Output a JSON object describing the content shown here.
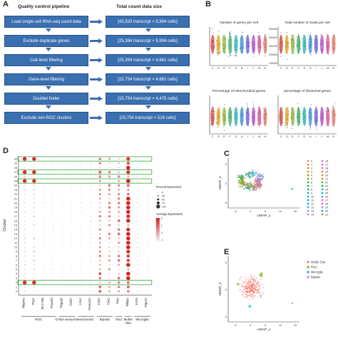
{
  "panels": {
    "a": "A",
    "b": "B",
    "c": "C",
    "d": "D",
    "e": "E"
  },
  "pipeline": {
    "header_left": "Quality control pipeline",
    "header_right": "Total count data size",
    "steps": [
      {
        "label": "Load single-cell RNA-seq count data",
        "count": "[43,320 transcript × 5,994 cells]"
      },
      {
        "label": "Exclude duplicate genes",
        "count": "[25,394 transcript × 5,994 cells]"
      },
      {
        "label": "Cell-level filtering",
        "count": "[25,394 transcript × 4,661 cells]"
      },
      {
        "label": "Gene-level filtering",
        "count": "[15,754 transcript × 4,661 cells]"
      },
      {
        "label": "Doublet finder",
        "count": "[15,754 transcript × 4,475 cells]"
      },
      {
        "label": "Exclude non-RGC clusters",
        "count": "[15,754 transcript × 516 cells]"
      }
    ]
  },
  "violin": {
    "titles": [
      "Number of genes per cell",
      "Total number of reads per cell",
      "Percentage of mitochondrial genes",
      "percentage of ribosomal genes"
    ],
    "groups": [
      "C",
      "D",
      "E",
      "F",
      "G",
      "H",
      "I",
      "L",
      "M",
      "N"
    ],
    "yticks_reads": [
      "500000",
      "400000",
      "300000",
      "200000",
      "100000"
    ],
    "colors": [
      "#d94040",
      "#e3a21a",
      "#8bb83a",
      "#3fae66",
      "#2fb5b0",
      "#3a8fd9",
      "#6a62d6",
      "#b04fcf",
      "#d94fa2",
      "#e07a5f"
    ]
  },
  "dotplot": {
    "ylabel": "Cluster",
    "clusters": [
      "0",
      "1",
      "2",
      "3",
      "4",
      "5",
      "6",
      "7",
      "8",
      "9",
      "10",
      "11",
      "12",
      "13",
      "14",
      "15",
      "16",
      "17",
      "18",
      "19",
      "20",
      "21",
      "22",
      "23",
      "24",
      "25",
      "26",
      "27",
      "28",
      "29",
      "30"
    ],
    "highlight_clusters": [
      "2",
      "25",
      "27",
      "30"
    ],
    "genes": [
      "Rbpms",
      "Thy1",
      "Slc17a6",
      "Pou4f3",
      "Tfap2b",
      "Gad1",
      "Lhx1",
      "Onecut1",
      "Vsx2",
      "Otx2",
      "Rho",
      "Rlbp1",
      "Fcrls",
      "Ptprz2"
    ],
    "groups": [
      {
        "name": "RGC",
        "span": [
          0,
          3
        ]
      },
      {
        "name": "GABA-amacrine",
        "span": [
          4,
          5
        ]
      },
      {
        "name": "Horizontal",
        "span": [
          6,
          7
        ]
      },
      {
        "name": "Bipolar",
        "span": [
          8,
          9
        ]
      },
      {
        "name": "Rod",
        "span": [
          10,
          10
        ]
      },
      {
        "name": "Muller Glia",
        "span": [
          11,
          11
        ]
      },
      {
        "name": "Microglia",
        "span": [
          12,
          13
        ]
      }
    ],
    "legend_pct_title": "Percent Expressed",
    "legend_pct": [
      "0",
      "25",
      "50",
      "75",
      "100"
    ],
    "legend_avg_title": "Average Expression",
    "legend_avg": [
      "2",
      "1",
      "0",
      "-1"
    ],
    "expr_column_level": [
      0.2,
      0.25,
      0.1,
      0.1,
      0.1,
      0.1,
      0.1,
      0.15,
      0.55,
      0.45,
      0.5,
      0.9,
      0.15,
      0.1
    ]
  },
  "umap_c": {
    "xlabel": "UMAP_1",
    "ylabel": "UMAP_2",
    "xticks": [
      "-5",
      "0",
      "5",
      "10",
      "15"
    ],
    "yticks": [
      "5",
      "0",
      "-5"
    ],
    "legend": [
      "0",
      "1",
      "2",
      "3",
      "4",
      "5",
      "6",
      "7",
      "8",
      "9",
      "10",
      "11",
      "12",
      "13",
      "14",
      "15",
      "16",
      "17",
      "18",
      "19",
      "20",
      "21",
      "22",
      "23",
      "24",
      "25",
      "26",
      "27",
      "28",
      "29",
      "30",
      "31"
    ],
    "colors": [
      "#f8766d",
      "#ea8331",
      "#d89000",
      "#c09b00",
      "#a3a500",
      "#7cae00",
      "#39b600",
      "#00bb4e",
      "#00bf7d",
      "#00c1a3",
      "#00bfc4",
      "#00bae0",
      "#00b0f6",
      "#35a2ff",
      "#9590ff",
      "#c77cff",
      "#e76bf3",
      "#fa62db",
      "#ff62bc",
      "#ff6c91",
      "#e58700",
      "#b79f00",
      "#6bb100",
      "#00ba38",
      "#00c08b",
      "#00bcd8",
      "#619cff",
      "#f564e3",
      "#ff64b0",
      "#a58aff",
      "#00b4ef",
      "#d39200"
    ]
  },
  "umap_e": {
    "xlabel": "UMAP_1",
    "ylabel": "UMAP_2",
    "xticks": [
      "-5",
      "0",
      "5",
      "10",
      "15"
    ],
    "yticks": [
      "5",
      "0",
      "-5"
    ],
    "legend": [
      {
        "name": "Muller Glia",
        "color": "#f8766d"
      },
      {
        "name": "RGC",
        "color": "#7cae00"
      },
      {
        "name": "Microglia",
        "color": "#00bfc4"
      },
      {
        "name": "Bipolar",
        "color": "#c77cff"
      }
    ]
  }
}
